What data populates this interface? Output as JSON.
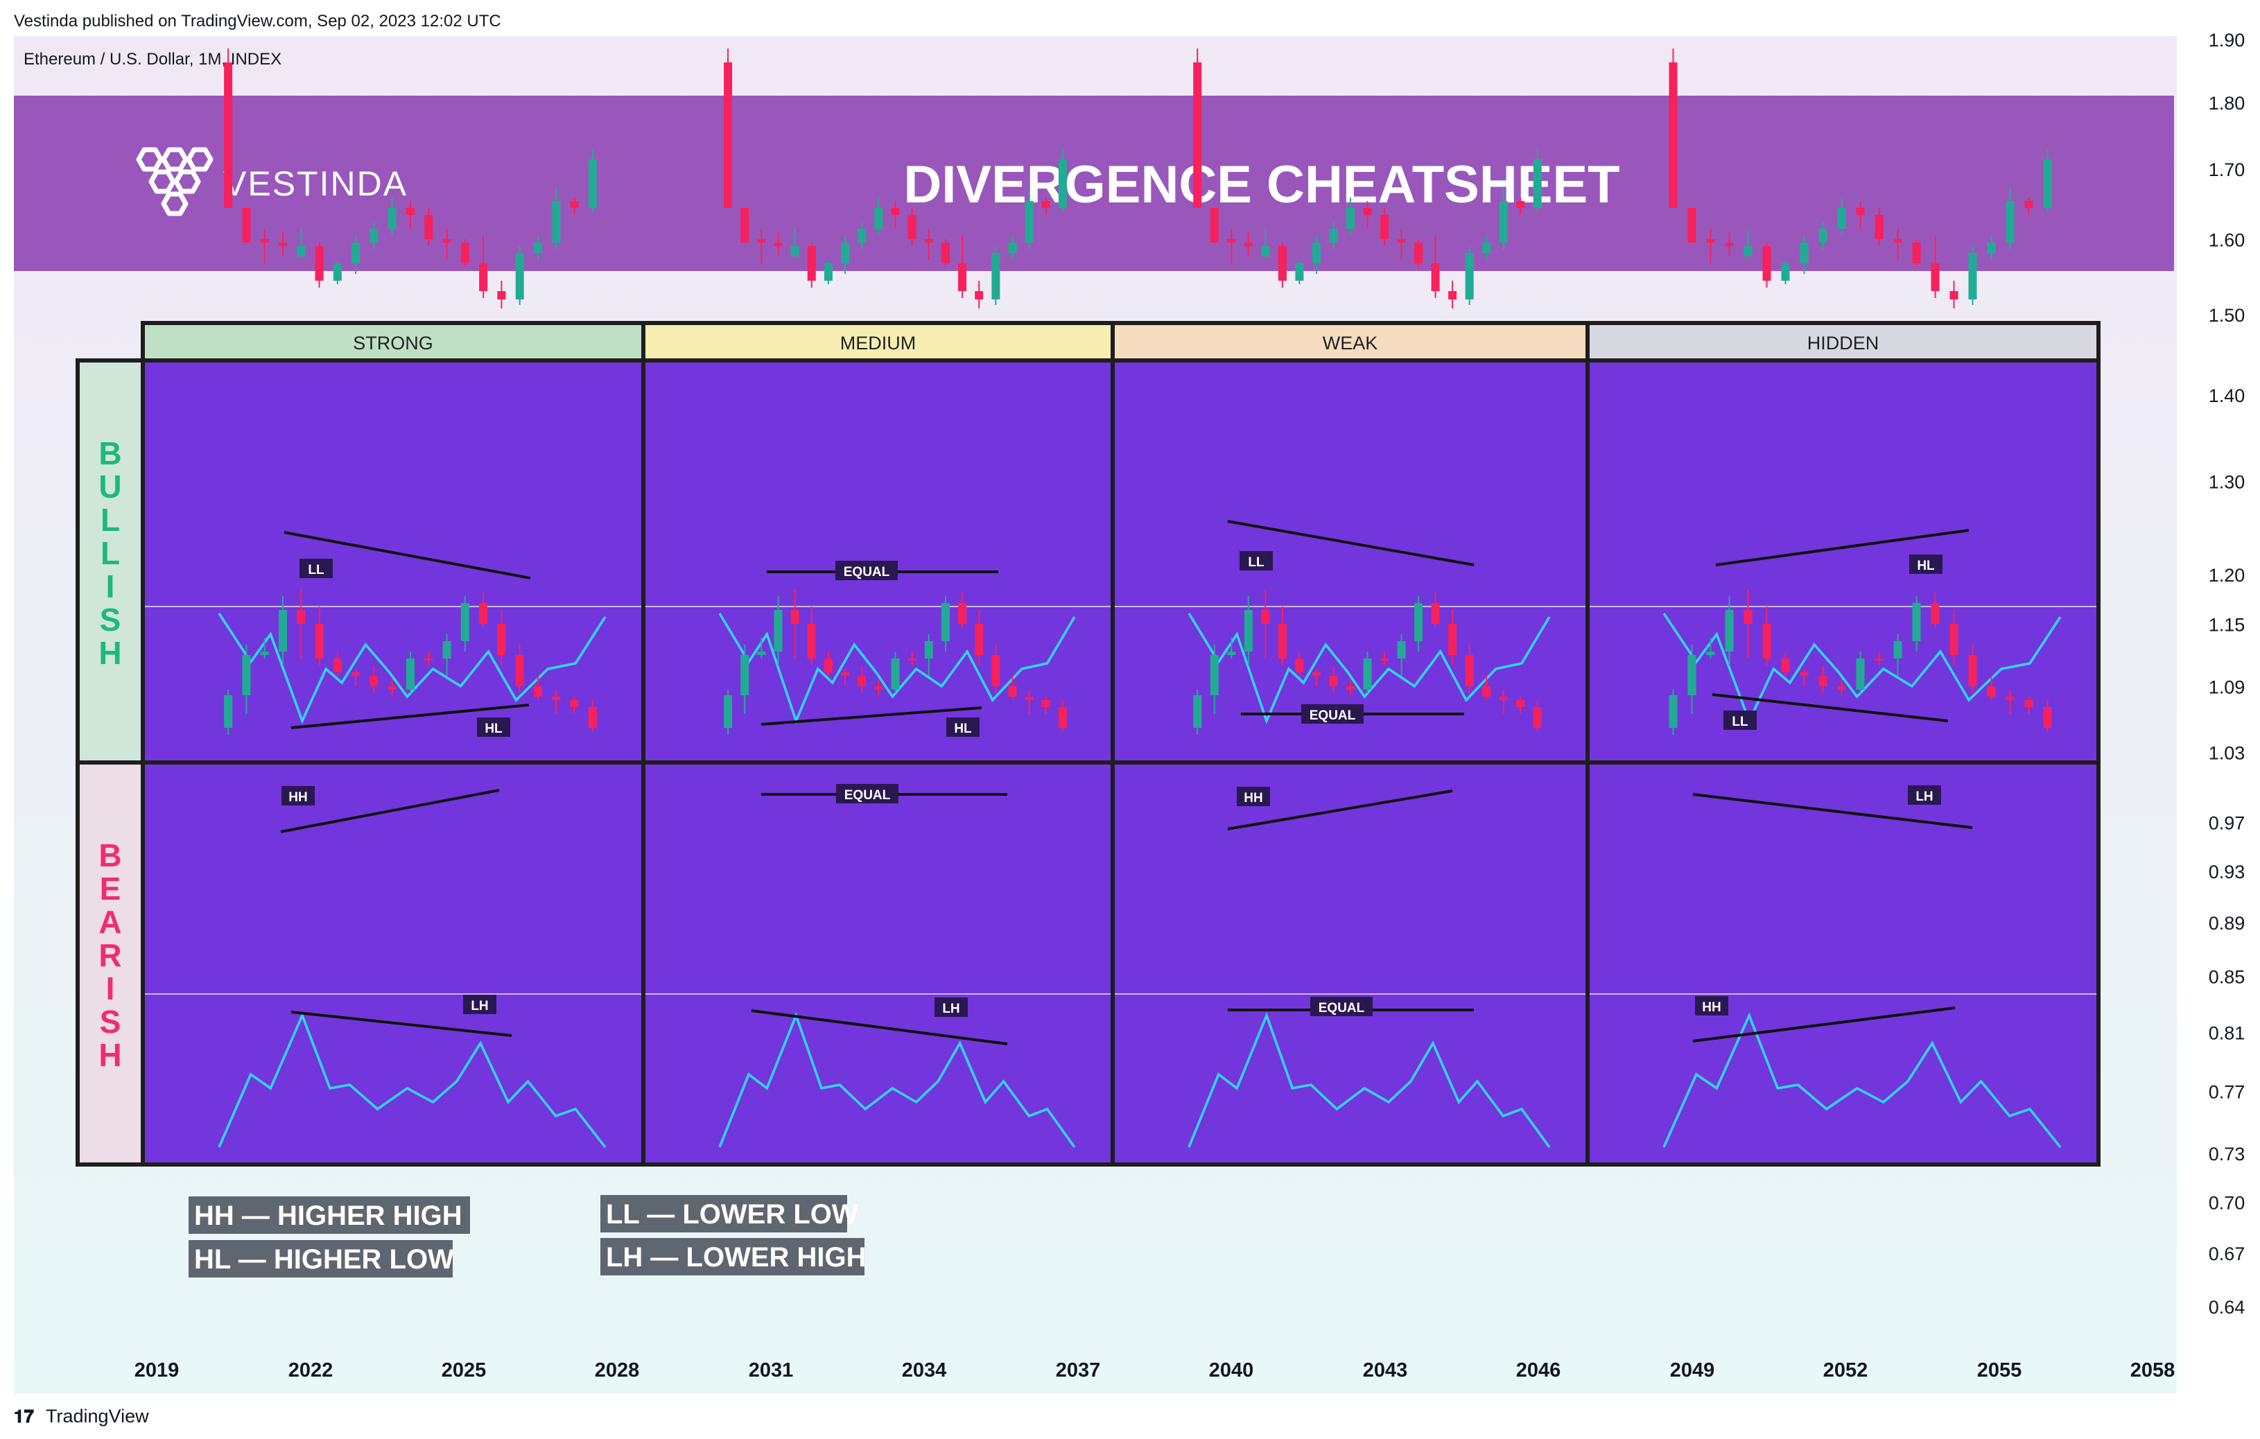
{
  "header": {
    "published": "Vestinda published on TradingView.com, Sep 02, 2023 12:02 UTC",
    "symbol": "Ethereum / U.S. Dollar, 1M, INDEX"
  },
  "banner": {
    "logo_text": "VESTINDA",
    "title": "DIVERGENCE CHEATSHEET",
    "color": "#9a57bb"
  },
  "columns": [
    {
      "label": "STRONG",
      "color": "#bfe0c5"
    },
    {
      "label": "MEDIUM",
      "color": "#f6eeb0"
    },
    {
      "label": "WEAK",
      "color": "#f6dcbe"
    },
    {
      "label": "HIDDEN",
      "color": "#d8d8e0"
    }
  ],
  "rows": [
    {
      "label": "BULLISH",
      "color": "#1db97a",
      "bg": "#cfe6d8"
    },
    {
      "label": "BEARISH",
      "color": "#f02d6e",
      "bg": "#eddde6"
    }
  ],
  "cells": {
    "bullish": [
      {
        "price_label": "LL",
        "osc_label": "HL"
      },
      {
        "price_label": "EQUAL",
        "osc_label": "HL"
      },
      {
        "price_label": "LL",
        "osc_label": "EQUAL"
      },
      {
        "price_label": "HL",
        "osc_label": "LL"
      }
    ],
    "bearish": [
      {
        "price_label": "HH",
        "osc_label": "LH"
      },
      {
        "price_label": "EQUAL",
        "osc_label": "LH"
      },
      {
        "price_label": "HH",
        "osc_label": "EQUAL"
      },
      {
        "price_label": "LH",
        "osc_label": "HH"
      }
    ]
  },
  "legend": [
    "HH — HIGHER HIGH",
    "HL — HIGHER LOW",
    "LL — LOWER LOW",
    "LH — LOWER HIGH"
  ],
  "colors": {
    "panel": "#7336dc",
    "up": "#22ab94",
    "down": "#f7215b",
    "oscillator": "#2fd7f7"
  },
  "footer": {
    "brand": "TradingView"
  },
  "chart_data": {
    "type": "line",
    "title": "",
    "x_ticks": [
      "2019",
      "2022",
      "2025",
      "2028",
      "2031",
      "2034",
      "2037",
      "2040",
      "2043",
      "2046",
      "2049",
      "2052",
      "2055",
      "2058"
    ],
    "y_ticks": [
      "1.90",
      "1.80",
      "1.70",
      "1.60",
      "1.50",
      "1.40",
      "1.30",
      "1.20",
      "1.15",
      "1.09",
      "1.03",
      "0.97",
      "0.93",
      "0.89",
      "0.85",
      "0.81",
      "0.77",
      "0.73",
      "0.70",
      "0.67",
      "0.64"
    ],
    "scale": "log",
    "xlabel": "",
    "ylabel": ""
  }
}
